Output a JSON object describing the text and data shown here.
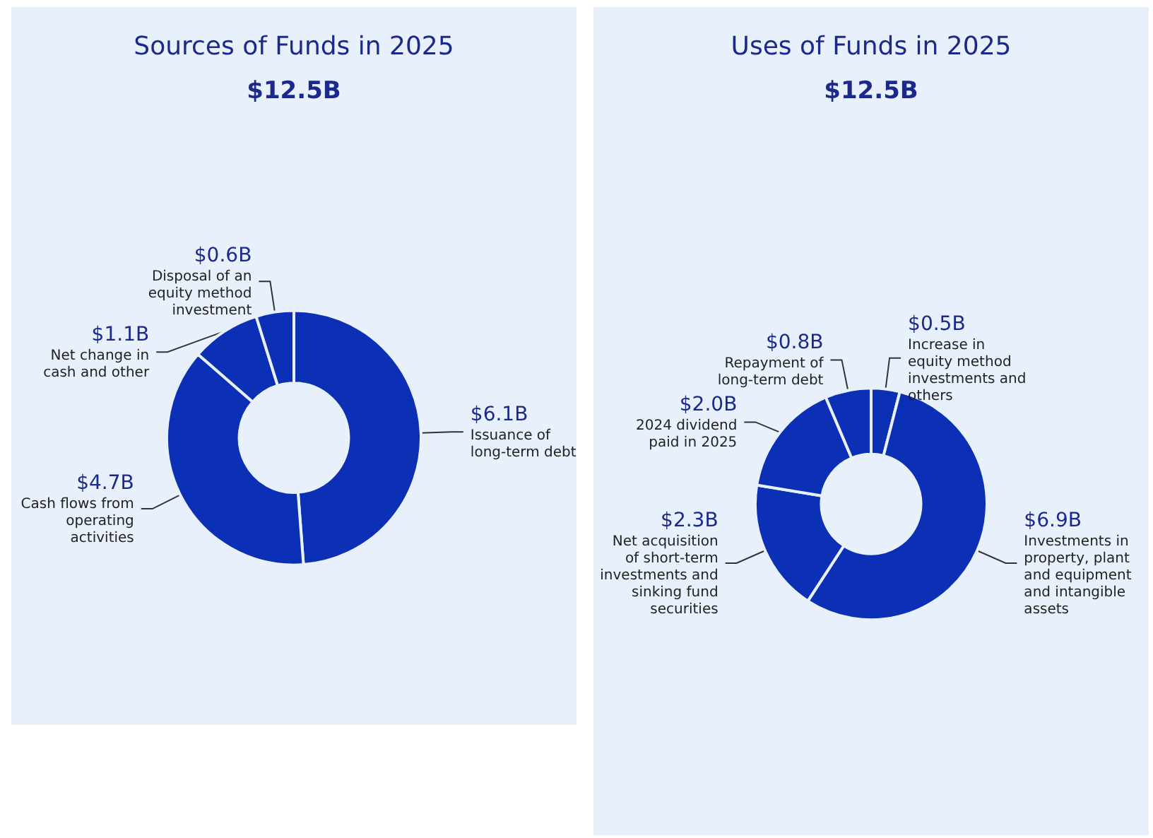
{
  "chart_data": [
    {
      "type": "donut",
      "title": "Sources of Funds in 2025",
      "subtitle": "$12.5B",
      "categories": [
        "Issuance of long-term debt",
        "Cash flows from operating activities",
        "Net change in cash and other",
        "Disposal of an equity method investment"
      ],
      "values": [
        6.1,
        4.7,
        1.1,
        0.6
      ],
      "value_labels": [
        "$6.1B",
        "$4.7B",
        "$1.1B",
        "$0.6B"
      ],
      "colors": [
        "#0b2fb5",
        "#0b2fb5",
        "#0b2fb5",
        "#0b2fb5"
      ],
      "legend": false
    },
    {
      "type": "donut",
      "title": "Uses of Funds in 2025",
      "subtitle": "$12.5B",
      "categories": [
        "Increase in equity method investments and others",
        "Investments in property, plant and equipment and intangible assets",
        "Net acquisition of short-term investments and sinking fund securities",
        "2024 dividend paid in 2025",
        "Repayment of long-term debt"
      ],
      "values": [
        0.5,
        6.9,
        2.3,
        2.0,
        0.8
      ],
      "value_labels": [
        "$0.5B",
        "$6.9B",
        "$2.3B",
        "$2.0B",
        "$0.8B"
      ],
      "colors": [
        "#0b2fb5",
        "#0b2fb5",
        "#0b2fb5",
        "#0b2fb5",
        "#0b2fb5"
      ],
      "legend": false
    }
  ]
}
